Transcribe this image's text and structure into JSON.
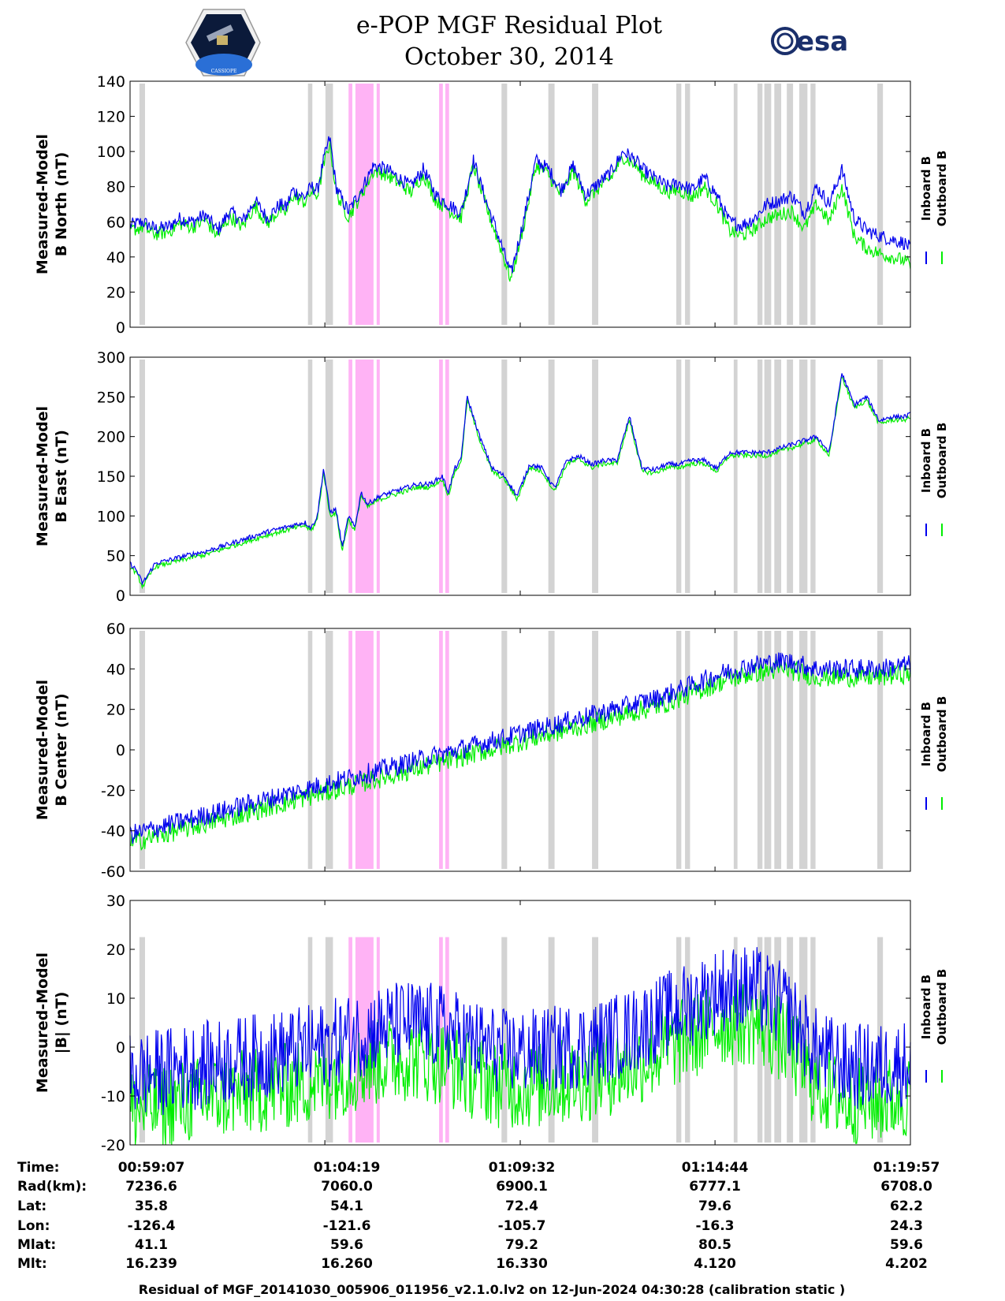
{
  "header": {
    "title": "e-POP MGF Residual Plot",
    "date": "October 30, 2014",
    "left_logo_text": "CASSIOPE",
    "right_logo_text": "esa"
  },
  "legend": {
    "inboard_label": "Inboard B",
    "outboard_label": "Outboard B",
    "inboard_color": "#0000ee",
    "outboard_color": "#00ee00"
  },
  "colors": {
    "inboard": "#0000ee",
    "outboard": "#00ee00",
    "gray_band": "#d3d3d3",
    "pink_band": "#ffb3f5"
  },
  "footer": {
    "row_labels": [
      "Time:",
      "Rad(km):",
      "Lat:",
      "Lon:",
      "Mlat:",
      "Mlt:"
    ],
    "columns": [
      [
        "00:59:07",
        "7236.6",
        "35.8",
        "-126.4",
        "41.1",
        "16.239"
      ],
      [
        "01:04:19",
        "7060.0",
        "54.1",
        "-121.6",
        "59.6",
        "16.260"
      ],
      [
        "01:09:32",
        "6900.1",
        "72.4",
        "-105.7",
        "79.2",
        "16.330"
      ],
      [
        "01:14:44",
        "6777.1",
        "79.6",
        "-16.3",
        "80.5",
        "4.120"
      ],
      [
        "01:19:57",
        "6708.0",
        "62.2",
        "24.3",
        "59.6",
        "4.202"
      ]
    ],
    "caption": "Residual of MGF_20141030_005906_011956_v2.1.0.lv2 on 12-Jun-2024 04:30:28 (calibration static )"
  },
  "chart_data": [
    {
      "type": "line",
      "ylabel_line1": "Measured-Model",
      "ylabel_line2": "B North (nT)",
      "ylim": [
        0,
        140
      ],
      "yticks": [
        0,
        20,
        40,
        60,
        80,
        100,
        120,
        140
      ],
      "xlim_seconds": [
        0,
        1250
      ],
      "xticks_seconds": [
        0,
        312,
        625,
        937,
        1250
      ],
      "series": [
        {
          "name": "Inboard B",
          "x": [
            0,
            20,
            40,
            60,
            80,
            100,
            120,
            140,
            160,
            180,
            200,
            220,
            240,
            250,
            260,
            270,
            280,
            290,
            300,
            310,
            320,
            330,
            340,
            350,
            370,
            390,
            410,
            430,
            450,
            470,
            490,
            510,
            530,
            550,
            570,
            590,
            610,
            630,
            650,
            670,
            690,
            710,
            730,
            750,
            770,
            790,
            810,
            820,
            840,
            860,
            880,
            900,
            920,
            940,
            960,
            980,
            1000,
            1020,
            1040,
            1060,
            1080,
            1100,
            1120,
            1140,
            1160,
            1180,
            1200,
            1220,
            1240,
            1250
          ],
          "values": [
            58,
            60,
            56,
            57,
            62,
            60,
            64,
            55,
            66,
            60,
            72,
            62,
            70,
            68,
            78,
            76,
            74,
            80,
            78,
            95,
            108,
            80,
            72,
            66,
            78,
            92,
            90,
            85,
            80,
            90,
            75,
            70,
            65,
            95,
            72,
            52,
            30,
            60,
            95,
            90,
            78,
            92,
            75,
            82,
            88,
            100,
            95,
            90,
            85,
            80,
            82,
            78,
            85,
            75,
            60,
            58,
            62,
            70,
            72,
            75,
            65,
            80,
            70,
            90,
            62,
            55,
            52,
            50,
            48,
            45
          ]
        },
        {
          "name": "Outboard B",
          "x": [
            0,
            20,
            40,
            60,
            80,
            100,
            120,
            140,
            160,
            180,
            200,
            220,
            240,
            250,
            260,
            270,
            280,
            290,
            300,
            310,
            320,
            330,
            340,
            350,
            370,
            390,
            410,
            430,
            450,
            470,
            490,
            510,
            530,
            550,
            570,
            590,
            610,
            630,
            650,
            670,
            690,
            710,
            730,
            750,
            770,
            790,
            810,
            820,
            840,
            860,
            880,
            900,
            920,
            940,
            960,
            980,
            1000,
            1020,
            1040,
            1060,
            1080,
            1100,
            1120,
            1140,
            1160,
            1180,
            1200,
            1220,
            1240,
            1250
          ],
          "values": [
            55,
            57,
            53,
            54,
            59,
            57,
            61,
            52,
            63,
            57,
            69,
            59,
            67,
            65,
            75,
            73,
            71,
            77,
            75,
            92,
            105,
            77,
            69,
            63,
            75,
            89,
            87,
            82,
            77,
            87,
            72,
            67,
            62,
            92,
            69,
            49,
            27,
            57,
            92,
            87,
            75,
            89,
            72,
            79,
            85,
            97,
            92,
            87,
            82,
            77,
            78,
            74,
            80,
            70,
            55,
            52,
            56,
            62,
            64,
            66,
            56,
            70,
            60,
            80,
            52,
            45,
            42,
            40,
            38,
            35
          ]
        }
      ]
    },
    {
      "type": "line",
      "ylabel_line1": "Measured-Model",
      "ylabel_line2": "B East (nT)",
      "ylim": [
        0,
        300
      ],
      "yticks": [
        0,
        50,
        100,
        150,
        200,
        250,
        300
      ],
      "xlim_seconds": [
        0,
        1250
      ],
      "xticks_seconds": [
        0,
        312,
        625,
        937,
        1250
      ],
      "series": [
        {
          "name": "Inboard B",
          "x": [
            0,
            10,
            20,
            40,
            60,
            80,
            100,
            120,
            140,
            160,
            180,
            200,
            220,
            240,
            260,
            280,
            290,
            300,
            310,
            320,
            330,
            340,
            350,
            360,
            370,
            380,
            400,
            420,
            440,
            460,
            480,
            500,
            510,
            520,
            530,
            540,
            560,
            580,
            600,
            620,
            640,
            660,
            680,
            700,
            720,
            740,
            760,
            780,
            800,
            820,
            840,
            860,
            880,
            900,
            920,
            940,
            960,
            980,
            1000,
            1020,
            1040,
            1060,
            1080,
            1100,
            1120,
            1140,
            1160,
            1180,
            1200,
            1220,
            1240,
            1250
          ],
          "values": [
            40,
            32,
            15,
            40,
            44,
            48,
            52,
            55,
            60,
            65,
            70,
            75,
            80,
            84,
            88,
            92,
            85,
            100,
            160,
            105,
            108,
            60,
            100,
            85,
            130,
            115,
            125,
            130,
            135,
            140,
            140,
            150,
            130,
            160,
            170,
            250,
            200,
            160,
            150,
            125,
            165,
            160,
            135,
            170,
            175,
            165,
            170,
            170,
            225,
            160,
            158,
            165,
            165,
            170,
            170,
            160,
            180,
            180,
            180,
            180,
            185,
            190,
            195,
            200,
            180,
            280,
            240,
            250,
            220,
            225,
            225,
            228
          ]
        },
        {
          "name": "Outboard B",
          "x": [
            0,
            10,
            20,
            40,
            60,
            80,
            100,
            120,
            140,
            160,
            180,
            200,
            220,
            240,
            260,
            280,
            290,
            300,
            310,
            320,
            330,
            340,
            350,
            360,
            370,
            380,
            400,
            420,
            440,
            460,
            480,
            500,
            510,
            520,
            530,
            540,
            560,
            580,
            600,
            620,
            640,
            660,
            680,
            700,
            720,
            740,
            760,
            780,
            800,
            820,
            840,
            860,
            880,
            900,
            920,
            940,
            960,
            980,
            1000,
            1020,
            1040,
            1060,
            1080,
            1100,
            1120,
            1140,
            1160,
            1180,
            1200,
            1220,
            1240,
            1250
          ],
          "values": [
            36,
            28,
            11,
            36,
            40,
            44,
            48,
            51,
            56,
            61,
            66,
            71,
            76,
            80,
            84,
            88,
            81,
            96,
            156,
            101,
            104,
            56,
            96,
            81,
            126,
            111,
            121,
            126,
            131,
            136,
            136,
            146,
            126,
            156,
            166,
            246,
            196,
            156,
            146,
            121,
            161,
            156,
            131,
            166,
            171,
            161,
            166,
            166,
            221,
            156,
            154,
            161,
            161,
            166,
            166,
            156,
            176,
            176,
            176,
            176,
            181,
            186,
            191,
            196,
            176,
            276,
            236,
            246,
            216,
            221,
            221,
            224
          ]
        }
      ]
    },
    {
      "type": "line",
      "ylabel_line1": "Measured-Model",
      "ylabel_line2": "B Center (nT)",
      "ylim": [
        -60,
        60
      ],
      "yticks": [
        -60,
        -40,
        -20,
        0,
        20,
        40,
        60
      ],
      "xlim_seconds": [
        0,
        1250
      ],
      "xticks_seconds": [
        0,
        312,
        625,
        937,
        1250
      ],
      "series": [
        {
          "name": "Inboard B",
          "x": [
            0,
            50,
            100,
            150,
            200,
            250,
            300,
            350,
            400,
            450,
            500,
            550,
            600,
            650,
            700,
            750,
            800,
            850,
            900,
            950,
            1000,
            1050,
            1100,
            1150,
            1200,
            1250
          ],
          "values": [
            -42,
            -38,
            -34,
            -30,
            -26,
            -22,
            -18,
            -14,
            -10,
            -6,
            -2,
            2,
            6,
            10,
            14,
            18,
            22,
            26,
            32,
            38,
            42,
            44,
            40,
            40,
            40,
            42
          ]
        },
        {
          "name": "Outboard B",
          "x": [
            0,
            50,
            100,
            150,
            200,
            250,
            300,
            350,
            400,
            450,
            500,
            550,
            600,
            650,
            700,
            750,
            800,
            850,
            900,
            950,
            1000,
            1050,
            1100,
            1150,
            1200,
            1250
          ],
          "values": [
            -46,
            -42,
            -38,
            -34,
            -30,
            -26,
            -22,
            -18,
            -14,
            -10,
            -6,
            -2,
            2,
            6,
            10,
            14,
            18,
            22,
            28,
            34,
            38,
            40,
            36,
            36,
            36,
            38
          ]
        }
      ]
    },
    {
      "type": "line",
      "ylabel_line1": "Measured-Model",
      "ylabel_line2": "|B| (nT)",
      "ylim": [
        -20,
        30
      ],
      "yticks": [
        -20,
        -10,
        0,
        10,
        20,
        30
      ],
      "xlim_seconds": [
        0,
        1250
      ],
      "xticks_seconds": [
        0,
        312,
        625,
        937,
        1250
      ],
      "series": [
        {
          "name": "Inboard B",
          "x": [
            0,
            50,
            100,
            150,
            200,
            250,
            300,
            350,
            400,
            450,
            500,
            550,
            600,
            650,
            700,
            750,
            800,
            850,
            900,
            950,
            1000,
            1050,
            1100,
            1150,
            1200,
            1250
          ],
          "values": [
            -6,
            -5,
            -4,
            -3,
            -2,
            -1,
            0,
            2,
            4,
            5,
            4,
            1,
            -1,
            -1,
            0,
            1,
            3,
            6,
            9,
            12,
            12,
            8,
            -1,
            -4,
            -4,
            -3
          ]
        },
        {
          "name": "Outboard B",
          "x": [
            0,
            50,
            100,
            150,
            200,
            250,
            300,
            350,
            400,
            450,
            500,
            550,
            600,
            650,
            700,
            750,
            800,
            850,
            900,
            950,
            1000,
            1050,
            1100,
            1150,
            1200,
            1250
          ],
          "values": [
            -13,
            -12,
            -11,
            -10,
            -9,
            -8,
            -7,
            -5,
            -3,
            -2,
            -3,
            -6,
            -8,
            -8,
            -7,
            -6,
            -4,
            -1,
            2,
            5,
            5,
            1,
            -8,
            -11,
            -11,
            -10
          ]
        }
      ]
    }
  ],
  "bands": {
    "gray_seconds": [
      [
        15,
        24
      ],
      [
        285,
        292
      ],
      [
        313,
        325
      ],
      [
        595,
        604
      ],
      [
        670,
        680
      ],
      [
        740,
        750
      ],
      [
        875,
        883
      ],
      [
        889,
        897
      ],
      [
        967,
        973
      ],
      [
        1005,
        1013
      ],
      [
        1016,
        1027
      ],
      [
        1032,
        1043
      ],
      [
        1052,
        1062
      ],
      [
        1072,
        1085
      ],
      [
        1090,
        1098
      ],
      [
        1197,
        1206
      ]
    ],
    "pink_seconds": [
      [
        350,
        356
      ],
      [
        361,
        390
      ],
      [
        395,
        400
      ],
      [
        495,
        501
      ],
      [
        505,
        511
      ]
    ]
  }
}
